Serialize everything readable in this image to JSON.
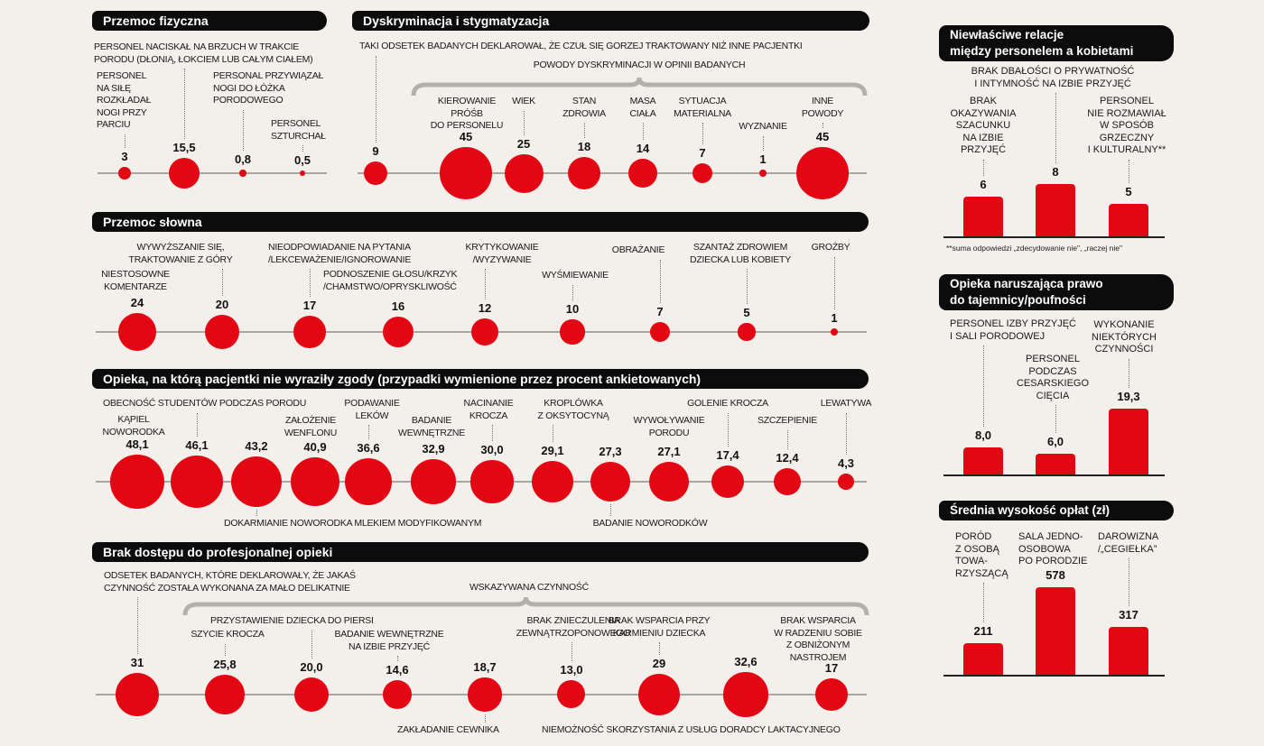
{
  "colors": {
    "accent": "#e30613",
    "header_bg": "#0c0c0c",
    "background": "#f3f0eb"
  },
  "chart_data": [
    {
      "type": "bubble",
      "title": "Przemoc fizyczna",
      "items": [
        {
          "label": "PERSONEL\nNA SIŁĘ\nROZKŁADAŁ\nNOGI PRZY\nPARCIU",
          "value": 3,
          "value_label": "3"
        },
        {
          "label": "PERSONEL NACISKAŁ NA BRZUCH W TRAKCIE\nPORODU (DŁONIĄ, ŁOKCIEM LUB CAŁYM CIAŁEM)",
          "value": 15.5,
          "value_label": "15,5"
        },
        {
          "label": "PERSONAL PRZYWIĄZAŁ\nNOGI DO ŁÓŻKA\nPORODOWEGO",
          "value": 0.8,
          "value_label": "0,8"
        },
        {
          "label": "PERSONEL\nSZTURCHAŁ",
          "value": 0.5,
          "value_label": "0,5"
        }
      ]
    },
    {
      "type": "bubble",
      "title": "Dyskryminacja i stygmatyzacja",
      "group_label": "POWODY DYSKRYMINACJI W OPINII BADANYCH",
      "items": [
        {
          "label": "TAKI ODSETEK BADANYCH DEKLAROWAŁ, ŻE CZUŁ SIĘ GORZEJ TRAKTOWANY NIŻ INNE PACJENTKI",
          "value": 9,
          "value_label": "9"
        },
        {
          "label": "KIEROWANIE\nPRÓŚB\nDO PERSONELU",
          "value": 45,
          "value_label": "45"
        },
        {
          "label": "WIEK",
          "value": 25,
          "value_label": "25"
        },
        {
          "label": "STAN\nZDROWIA",
          "value": 18,
          "value_label": "18"
        },
        {
          "label": "MASA\nCIAŁA",
          "value": 14,
          "value_label": "14"
        },
        {
          "label": "SYTUACJA\nMATERIALNA",
          "value": 7,
          "value_label": "7"
        },
        {
          "label": "WYZNANIE",
          "value": 1,
          "value_label": "1"
        },
        {
          "label": "INNE\nPOWODY",
          "value": 45,
          "value_label": "45"
        }
      ]
    },
    {
      "type": "bubble",
      "title": "Przemoc słowna",
      "items": [
        {
          "label": "NIESTOSOWNE\nKOMENTARZE",
          "value": 24,
          "value_label": "24"
        },
        {
          "label": "WYWYŻSZANIE SIĘ,\nTRAKTOWANIE Z GÓRY",
          "value": 20,
          "value_label": "20"
        },
        {
          "label": "NIEODPOWIADANIE NA PYTANIA\n/LEKCEWAŻENIE/IGNOROWANIE",
          "value": 17,
          "value_label": "17"
        },
        {
          "label": "PODNOSZENIE GŁOSU/KRZYK\n/CHAMSTWO/OPRYSKLIWOŚĆ",
          "value": 16,
          "value_label": "16"
        },
        {
          "label": "KRYTYKOWANIE\n/WYZYWANIE",
          "value": 12,
          "value_label": "12"
        },
        {
          "label": "WYŚMIEWANIE",
          "value": 10,
          "value_label": "10"
        },
        {
          "label": "OBRAŻANIE",
          "value": 7,
          "value_label": "7"
        },
        {
          "label": "SZANTAŻ ZDROWIEM\nDZIECKA LUB KOBIETY",
          "value": 5,
          "value_label": "5"
        },
        {
          "label": "GROŹBY",
          "value": 1,
          "value_label": "1"
        }
      ]
    },
    {
      "type": "bubble",
      "title": "Opieka, na którą pacjentki nie wyraziły zgody  (przypadki wymienione przez procent ankietowanych)",
      "items": [
        {
          "label": "KĄPIEL\nNOWORODKA",
          "value": 48.1,
          "value_label": "48,1"
        },
        {
          "label": "OBECNOŚĆ STUDENTÓW PODCZAS PORODU",
          "value": 46.1,
          "value_label": "46,1"
        },
        {
          "label": "DOKARMIANIE NOWORODKA MLEKIEM MODYFIKOWANYM",
          "value": 43.2,
          "value_label": "43,2"
        },
        {
          "label": "ZAŁOŻENIE\nWENFLONU",
          "value": 40.9,
          "value_label": "40,9"
        },
        {
          "label": "PODAWANIE\nLEKÓW",
          "value": 36.6,
          "value_label": "36,6"
        },
        {
          "label": "BADANIE\nWEWNĘTRZNE",
          "value": 32.9,
          "value_label": "32,9"
        },
        {
          "label": "NACINANIE\nKROCZA",
          "value": 30.0,
          "value_label": "30,0"
        },
        {
          "label": "KROPLÓWKA\nZ OKSYTOCYNĄ",
          "value": 29.1,
          "value_label": "29,1"
        },
        {
          "label": "BADANIE NOWORODKÓW",
          "value": 27.3,
          "value_label": "27,3"
        },
        {
          "label": "WYWOŁYWANIE\nPORODU",
          "value": 27.1,
          "value_label": "27,1"
        },
        {
          "label": "GOLENIE KROCZA",
          "value": 17.4,
          "value_label": "17,4"
        },
        {
          "label": "SZCZEPIENIE",
          "value": 12.4,
          "value_label": "12,4"
        },
        {
          "label": "LEWATYWA",
          "value": 4.3,
          "value_label": "4,3"
        }
      ]
    },
    {
      "type": "bubble",
      "title": "Brak dostępu do profesjonalnej opieki",
      "group_label": "WSKAZYWANA CZYNNOŚĆ",
      "items": [
        {
          "label": "ODSETEK BADANYCH, KTÓRE DEKLAROWAŁY, ŻE JAKAŚ\nCZYNNOŚĆ ZOSTAŁA WYKONANA ZA MAŁO DELIKATNIE",
          "value": 31,
          "value_label": "31"
        },
        {
          "label": "SZYCIE KROCZA",
          "value": 25.8,
          "value_label": "25,8"
        },
        {
          "label": "PRZYSTAWIENIE DZIECKA DO PIERSI",
          "value": 20.0,
          "value_label": "20,0"
        },
        {
          "label": "BADANIE WEWNĘTRZNE\nNA IZBIE PRZYJĘĆ",
          "value": 14.6,
          "value_label": "14,6"
        },
        {
          "label": "ZAKŁADANIE CEWNIKA",
          "value": 18.7,
          "value_label": "18,7"
        },
        {
          "label": "BRAK ZNIECZULENIA\nZEWNĄTRZOPONOWEGO",
          "value": 13.0,
          "value_label": "13,0"
        },
        {
          "label": "BRAK WSPARCIA PRZY\nKARMIENIU DZIECKA",
          "value": 29,
          "value_label": "29"
        },
        {
          "label": "NIEMOŻNOŚĆ SKORZYSTANIA Z USŁUG DORADCY LAKTACYJNEGO",
          "value": 32.6,
          "value_label": "32,6"
        },
        {
          "label": "BRAK WSPARCIA\nW RADZENIU SOBIE\nZ OBNIŻONYM\nNASTROJEM",
          "value": 17,
          "value_label": "17"
        }
      ]
    },
    {
      "type": "bar",
      "title": "Niewłaściwe relacje\nmiędzy personelem a kobietami",
      "footnote": "**suma odpowiedzi „zdecydowanie nie\", „raczej nie\"",
      "items": [
        {
          "label": "BRAK\nOKAZYWANIA\nSZACUNKU\nNA IZBIE\nPRZYJĘĆ",
          "value": 6,
          "value_label": "6"
        },
        {
          "label": "BRAK DBAŁOŚCI O PRYWATNOŚĆ\nI INTYMNOŚĆ NA IZBIE PRZYJĘĆ",
          "value": 8,
          "value_label": "8"
        },
        {
          "label": "PERSONEL\nNIE ROZMAWIAŁ\nW SPOSÓB\nGRZECZNY\nI KULTURALNY**",
          "value": 5,
          "value_label": "5"
        }
      ]
    },
    {
      "type": "bar",
      "title": "Opieka naruszająca prawo\ndo tajemnicy/poufności",
      "items": [
        {
          "label": "PERSONEL IZBY PRZYJĘĆ\nI SALI PORODOWEJ",
          "value": 8.0,
          "value_label": "8,0"
        },
        {
          "label": "PERSONEL\nPODCZAS\nCESARSKIEGO\nCIĘCIA",
          "value": 6.0,
          "value_label": "6,0"
        },
        {
          "label": "WYKONANIE\nNIEKTÓRYCH\nCZYNNOŚCI",
          "value": 19.3,
          "value_label": "19,3"
        }
      ]
    },
    {
      "type": "bar",
      "title": "Średnia wysokość opłat (zł)",
      "items": [
        {
          "label": "PORÓD\nZ OSOBĄ\nTOWA-\nRZYSZĄCĄ",
          "value": 211,
          "value_label": "211"
        },
        {
          "label": "SALA JEDNO-\nOSOBOWA\nPO PORODZIE",
          "value": 578,
          "value_label": "578"
        },
        {
          "label": "DAROWIZNA\n/„CEGIEŁKA”",
          "value": 317,
          "value_label": "317"
        }
      ]
    }
  ]
}
